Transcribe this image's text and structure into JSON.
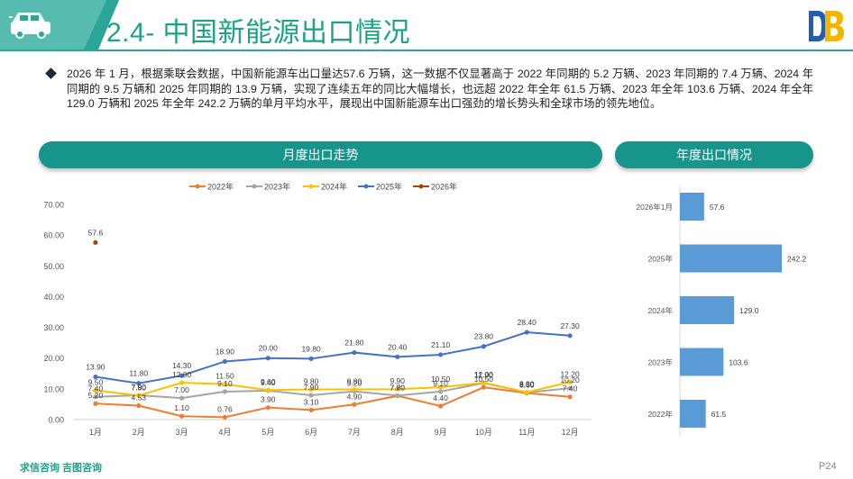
{
  "header": {
    "title": "2.4- 中国新能源出口情况",
    "icon": "car-icon",
    "logo": "db-logo"
  },
  "summary": "2026 年 1 月，根据乘联会数据，中国新能源车出口量达57.6 万辆，这一数据不仅显著高于 2022 年同期的 5.2 万辆、2023 年同期的 7.4 万辆、2024 年同期的 9.5 万辆和 2025 年同期的 13.9 万辆，实现了连续五年的同比大幅增长，也远超 2022 年全年 61.5 万辆、2023 年全年 103.6 万辆、2024 年全年 129.0 万辆和 2025 年全年 242.2 万辆的单月平均水平，展现出中国新能源车出口强劲的增长势头和全球市场的领先地位。",
  "sections": {
    "monthly_title": "月度出口走势",
    "annual_title": "年度出口情况"
  },
  "footer": {
    "source": "求信咨询  吉图咨询",
    "page": "P24"
  },
  "colors": {
    "teal": "#18958a",
    "s2022": "#ED7D31",
    "s2023": "#A5A5A5",
    "s2024": "#FFC000",
    "s2025": "#4472C4",
    "s2026": "#9E480E",
    "bar": "#5B9BD5"
  },
  "chart_data": [
    {
      "type": "line",
      "title": "月度出口走势",
      "categories": [
        "1月",
        "2月",
        "3月",
        "4月",
        "5月",
        "6月",
        "7月",
        "8月",
        "9月",
        "10月",
        "11月",
        "12月"
      ],
      "ylim": [
        0,
        70
      ],
      "yticks": [
        "0.00",
        "10.00",
        "20.00",
        "30.00",
        "40.00",
        "50.00",
        "60.00",
        "70.00"
      ],
      "legend_position": "top-center",
      "series": [
        {
          "name": "2022年",
          "color": "#ED7D31",
          "values": [
            5.2,
            4.53,
            1.1,
            0.76,
            3.9,
            3.1,
            4.9,
            7.7,
            4.4,
            10.5,
            8.6,
            7.4
          ],
          "labels": [
            "5.20",
            "4.53",
            "1.10",
            "0.76",
            "3.90",
            "3.10",
            "4.90",
            "7.70",
            "4.40",
            "10.50",
            "8.60",
            "7.40"
          ]
        },
        {
          "name": "2023年",
          "color": "#A5A5A5",
          "values": [
            7.4,
            7.9,
            7.0,
            9.1,
            9.4,
            7.9,
            9.2,
            7.8,
            9.1,
            11.9,
            8.8,
            10.2
          ],
          "labels": [
            "7.40",
            "7.90",
            "7.00",
            "9.10",
            "9.40",
            "7.90",
            "9.20",
            "7.80",
            "9.10",
            "11.90",
            "8.80",
            "10.20"
          ]
        },
        {
          "name": "2024年",
          "color": "#FFC000",
          "values": [
            9.5,
            7.8,
            12.0,
            11.5,
            9.6,
            9.8,
            9.8,
            9.9,
            10.5,
            12.0,
            8.9,
            12.2
          ],
          "labels": [
            "9.50",
            "7.80",
            "12.00",
            "11.50",
            "9.60",
            "9.80",
            "9.80",
            "9.90",
            "10.50",
            "12.00",
            "8.90",
            "12.20"
          ]
        },
        {
          "name": "2025年",
          "color": "#4472C4",
          "values": [
            13.9,
            11.8,
            14.3,
            18.9,
            20.0,
            19.8,
            21.8,
            20.4,
            21.1,
            23.8,
            28.4,
            27.3
          ],
          "labels": [
            "13.90",
            "11.80",
            "14.30",
            "18.90",
            "20.00",
            "19.80",
            "21.80",
            "20.40",
            "21.10",
            "23.80",
            "28.40",
            "27.30"
          ]
        },
        {
          "name": "2026年",
          "color": "#9E480E",
          "values": [
            57.6,
            null,
            null,
            null,
            null,
            null,
            null,
            null,
            null,
            null,
            null,
            null
          ],
          "labels": [
            "57.6",
            "",
            "",
            "",
            "",
            "",
            "",
            "",
            "",
            "",
            "",
            ""
          ]
        }
      ]
    },
    {
      "type": "bar",
      "orientation": "horizontal",
      "title": "年度出口情况",
      "categories": [
        "2026年1月",
        "2025年",
        "2024年",
        "2023年",
        "2022年"
      ],
      "values": [
        57.6,
        242.2,
        129.0,
        103.6,
        61.5
      ],
      "labels": [
        "57.6",
        "242.2",
        "129.0",
        "103.6",
        "61.5"
      ],
      "color": "#5B9BD5"
    }
  ]
}
